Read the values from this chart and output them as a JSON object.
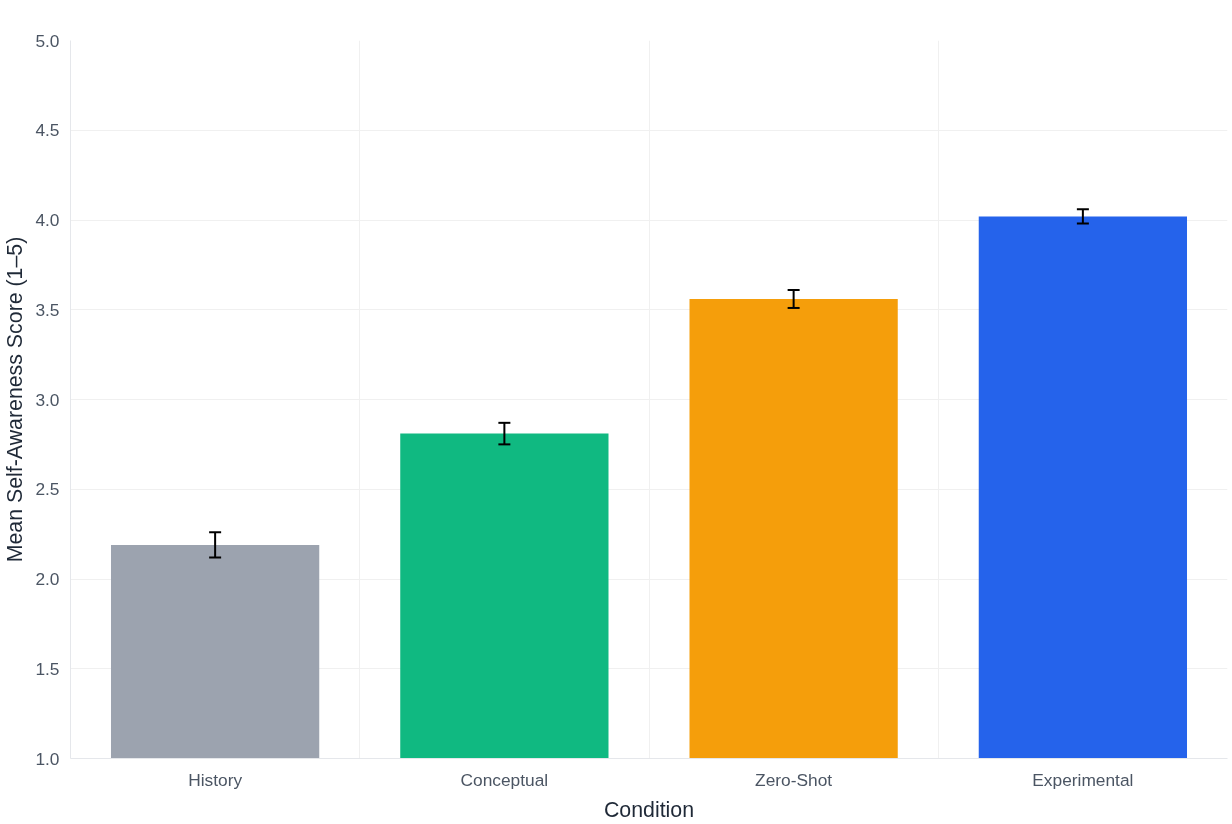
{
  "chart_data": {
    "type": "bar",
    "xlabel": "Condition",
    "ylabel": "Mean Self-Awareness Score (1–5)",
    "categories": [
      "History",
      "Conceptual",
      "Zero-Shot",
      "Experimental"
    ],
    "values": [
      2.19,
      2.81,
      3.56,
      4.02
    ],
    "errors": [
      0.07,
      0.06,
      0.05,
      0.04
    ],
    "colors": [
      "#9ca3af",
      "#10b981",
      "#f59e0b",
      "#2563eb"
    ],
    "ylim": [
      1.0,
      5.0
    ],
    "yticks": [
      {
        "value": 1.0,
        "label": "1.0"
      },
      {
        "value": 1.5,
        "label": "1.5"
      },
      {
        "value": 2.0,
        "label": "2.0"
      },
      {
        "value": 2.5,
        "label": "2.5"
      },
      {
        "value": 3.0,
        "label": "3.0"
      },
      {
        "value": 3.5,
        "label": "3.5"
      },
      {
        "value": 4.0,
        "label": "4.0"
      },
      {
        "value": 4.5,
        "label": "4.5"
      },
      {
        "value": 5.0,
        "label": "5.0"
      }
    ],
    "grid": true
  }
}
